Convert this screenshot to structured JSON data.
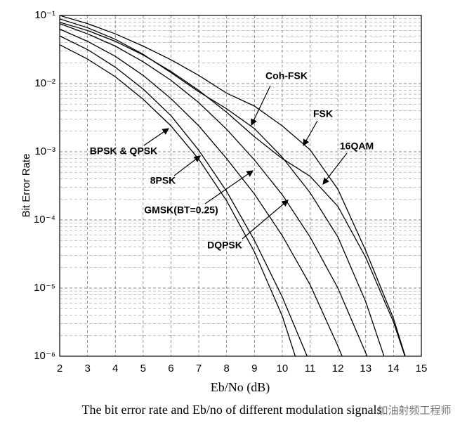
{
  "chart_data": {
    "type": "line",
    "xlabel": "Eb/No (dB)",
    "ylabel": "Bit Error Rate",
    "caption": "The bit error rate and Eb/no of different modulation signals",
    "watermark": "加油射频工程师",
    "xlim": [
      2,
      15
    ],
    "xticks": [
      2,
      3,
      4,
      5,
      6,
      7,
      8,
      9,
      10,
      11,
      12,
      13,
      14,
      15
    ],
    "ylim": [
      1e-06,
      0.1
    ],
    "yticks": [
      {
        "value": 1e-06,
        "label": "10⁻⁶"
      },
      {
        "value": 1e-05,
        "label": "10⁻⁵"
      },
      {
        "value": 0.0001,
        "label": "10⁻⁴"
      },
      {
        "value": 0.001,
        "label": "10⁻³"
      },
      {
        "value": 0.01,
        "label": "10⁻²"
      },
      {
        "value": 0.1,
        "label": "10⁻¹"
      }
    ],
    "log_y": true,
    "grid": true,
    "annotations": [
      "Coh-FSK",
      "FSK",
      "16QAM",
      "BPSK & QPSK",
      "8PSK",
      "GMSK(BT=0.25)",
      "DQPSK"
    ],
    "series": [
      {
        "name": "BPSK & QPSK",
        "color": "#000000",
        "x": [
          2,
          3,
          4,
          5,
          6,
          7,
          8,
          9,
          10,
          10.5
        ],
        "values": [
          0.0372,
          0.0229,
          0.0126,
          0.00589,
          0.0024,
          0.000776,
          0.000191,
          3.39e-05,
          3.89e-06,
          9.1e-07
        ]
      },
      {
        "name": "8PSK",
        "color": "#000000",
        "x": [
          2,
          3,
          4,
          5,
          6,
          7,
          8,
          9,
          10,
          11
        ],
        "values": [
          0.0501,
          0.0316,
          0.0174,
          0.00832,
          0.00339,
          0.00105,
          0.000263,
          5.01e-05,
          7.41e-06,
          7.9e-07
        ]
      },
      {
        "name": "GMSK(BT=0.25)",
        "color": "#000000",
        "x": [
          2,
          3,
          4,
          5,
          6,
          7,
          8,
          9,
          10,
          11,
          12,
          12.2
        ],
        "values": [
          0.0631,
          0.0417,
          0.0251,
          0.0132,
          0.00603,
          0.0024,
          0.000794,
          0.00024,
          5.89e-05,
          1.12e-05,
          1.41e-06,
          8.9e-07
        ]
      },
      {
        "name": "DQPSK",
        "color": "#000000",
        "x": [
          2,
          3,
          4,
          5,
          6,
          7,
          8,
          9,
          10,
          11,
          12,
          13,
          13.1
        ],
        "values": [
          0.0759,
          0.0537,
          0.0355,
          0.0209,
          0.0112,
          0.00525,
          0.00214,
          0.000759,
          0.000234,
          5.62e-05,
          1e-05,
          1.12e-06,
          8.9e-07
        ]
      },
      {
        "name": "Coh-FSK",
        "color": "#000000",
        "x": [
          2,
          3,
          4,
          5,
          6,
          7,
          8,
          9,
          10,
          11,
          12,
          13,
          13.7
        ],
        "values": [
          0.0891,
          0.0661,
          0.0447,
          0.0269,
          0.0145,
          0.00759,
          0.00427,
          0.00219,
          0.000832,
          0.000251,
          5.62e-05,
          6.31e-06,
          8.9e-07
        ]
      },
      {
        "name": "FSK",
        "color": "#000000",
        "x": [
          2,
          3,
          4,
          5,
          6,
          7,
          8,
          9,
          10,
          11,
          12,
          13,
          14,
          14.5
        ],
        "values": [
          0.1,
          0.0759,
          0.0537,
          0.0355,
          0.0224,
          0.0132,
          0.00724,
          0.00468,
          0.0024,
          0.00107,
          0.000282,
          3.55e-05,
          3.55e-06,
          7.9e-07
        ]
      },
      {
        "name": "16QAM",
        "color": "#000000",
        "x": [
          2,
          3,
          4,
          5,
          6,
          7,
          8,
          9,
          10,
          11,
          12,
          13,
          14,
          14.45
        ],
        "values": [
          0.0794,
          0.0603,
          0.0417,
          0.0263,
          0.0151,
          0.00794,
          0.0038,
          0.00166,
          0.000794,
          0.000437,
          0.000158,
          2.82e-05,
          3.16e-06,
          8.9e-07
        ]
      }
    ]
  }
}
